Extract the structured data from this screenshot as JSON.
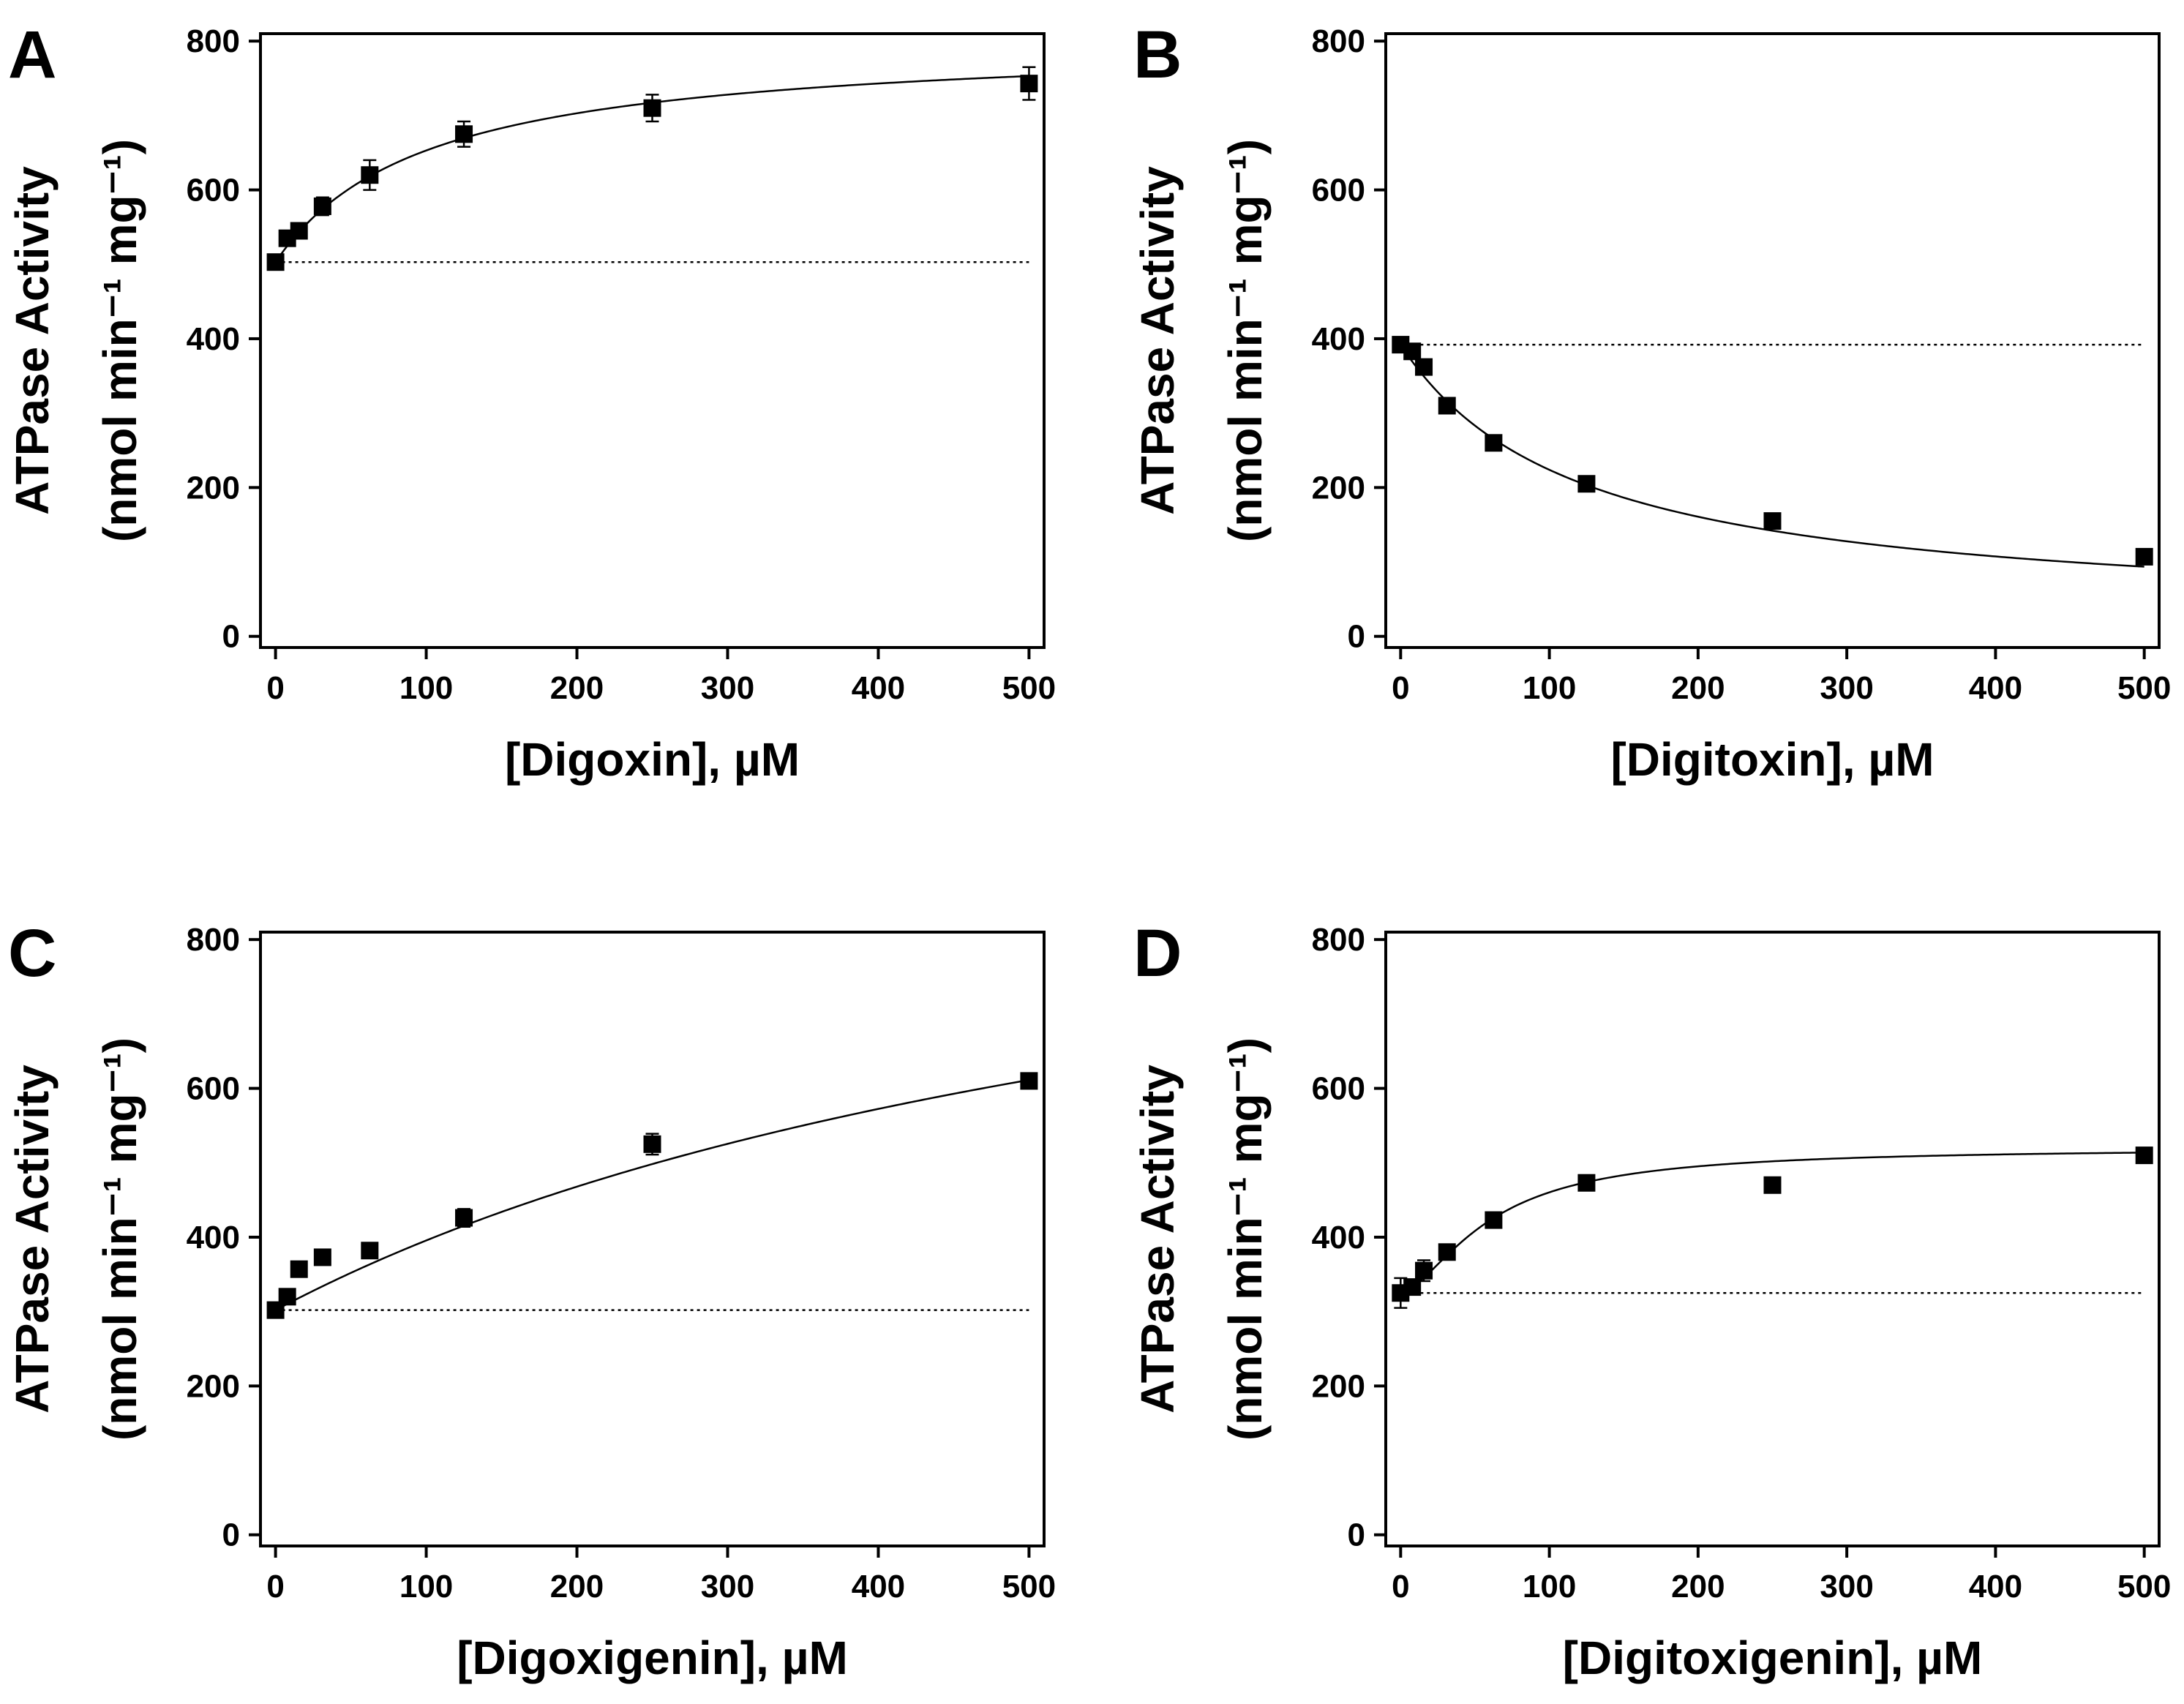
{
  "chart_data": [
    {
      "panel": "A",
      "type": "scatter",
      "title": "",
      "xlabel": "[Digoxin], µM",
      "ylabel_line1": "ATPase Activity",
      "ylabel_line2": "(nmol min⁻¹ mg⁻¹)",
      "xlim": [
        -10,
        510
      ],
      "ylim": [
        -15,
        810
      ],
      "xticks": [
        0,
        100,
        200,
        300,
        400,
        500
      ],
      "yticks": [
        0,
        200,
        400,
        600,
        800
      ],
      "baseline": 503,
      "fit": {
        "model": "hyperbolic",
        "v0": 503,
        "delta": 300,
        "k": 100
      },
      "points": [
        {
          "x": 0,
          "y": 503,
          "err": 6
        },
        {
          "x": 7.8,
          "y": 535,
          "err": 8
        },
        {
          "x": 15.6,
          "y": 545,
          "err": 8
        },
        {
          "x": 31.2,
          "y": 578,
          "err": 12
        },
        {
          "x": 62.5,
          "y": 620,
          "err": 20
        },
        {
          "x": 125,
          "y": 675,
          "err": 17
        },
        {
          "x": 250,
          "y": 710,
          "err": 18
        },
        {
          "x": 500,
          "y": 743,
          "err": 22
        }
      ]
    },
    {
      "panel": "B",
      "type": "scatter",
      "title": "",
      "xlabel": "[Digitoxin], µM",
      "ylabel_line1": "ATPase Activity",
      "ylabel_line2": "(nmol min⁻¹ mg⁻¹)",
      "xlim": [
        -10,
        510
      ],
      "ylim": [
        -15,
        810
      ],
      "xticks": [
        0,
        100,
        200,
        300,
        400,
        500
      ],
      "yticks": [
        0,
        200,
        400,
        600,
        800
      ],
      "baseline": 392,
      "fit": {
        "model": "hyperbolic",
        "v0": 392,
        "delta": -370,
        "k": 120
      },
      "points": [
        {
          "x": 0,
          "y": 392,
          "err": 4
        },
        {
          "x": 7.8,
          "y": 383,
          "err": 4
        },
        {
          "x": 15.6,
          "y": 362,
          "err": 6
        },
        {
          "x": 31.2,
          "y": 310,
          "err": 6
        },
        {
          "x": 62.5,
          "y": 260,
          "err": 4
        },
        {
          "x": 125,
          "y": 205,
          "err": 4
        },
        {
          "x": 250,
          "y": 155,
          "err": 4
        },
        {
          "x": 500,
          "y": 107,
          "err": 4
        }
      ]
    },
    {
      "panel": "C",
      "type": "scatter",
      "title": "",
      "xlabel": "[Digoxigenin], µM",
      "ylabel_line1": "ATPase Activity",
      "ylabel_line2": "(nmol min⁻¹ mg⁻¹)",
      "xlim": [
        -10,
        510
      ],
      "ylim": [
        -15,
        810
      ],
      "xticks": [
        0,
        100,
        200,
        300,
        400,
        500
      ],
      "yticks": [
        0,
        200,
        400,
        600,
        800
      ],
      "baseline": 302,
      "fit": {
        "model": "hyperbolic",
        "v0": 302,
        "delta": 730,
        "k": 680
      },
      "points": [
        {
          "x": 0,
          "y": 302,
          "err": 8
        },
        {
          "x": 7.8,
          "y": 320,
          "err": 8
        },
        {
          "x": 15.6,
          "y": 357,
          "err": 8
        },
        {
          "x": 31.2,
          "y": 373,
          "err": 8
        },
        {
          "x": 62.5,
          "y": 382,
          "err": 8
        },
        {
          "x": 125,
          "y": 426,
          "err": 12
        },
        {
          "x": 250,
          "y": 525,
          "err": 14
        },
        {
          "x": 500,
          "y": 610,
          "err": 8
        }
      ]
    },
    {
      "panel": "D",
      "type": "scatter",
      "title": "",
      "xlabel": "[Digitoxigenin], µM",
      "ylabel_line1": "ATPase Activity",
      "ylabel_line2": "(nmol min⁻¹ mg⁻¹)",
      "xlim": [
        -10,
        510
      ],
      "ylim": [
        -15,
        810
      ],
      "xticks": [
        0,
        100,
        200,
        300,
        400,
        500
      ],
      "yticks": [
        0,
        200,
        400,
        600,
        800
      ],
      "baseline": 325,
      "fit": {
        "model": "hill",
        "v0": 325,
        "delta": 195,
        "k": 60,
        "n": 1.6
      },
      "points": [
        {
          "x": 0,
          "y": 325,
          "err": 20
        },
        {
          "x": 7.8,
          "y": 333,
          "err": 8
        },
        {
          "x": 15.6,
          "y": 355,
          "err": 14
        },
        {
          "x": 31.2,
          "y": 380,
          "err": 8
        },
        {
          "x": 62.5,
          "y": 423,
          "err": 8
        },
        {
          "x": 125,
          "y": 473,
          "err": 8
        },
        {
          "x": 250,
          "y": 470,
          "err": 8
        },
        {
          "x": 500,
          "y": 510,
          "err": 8
        }
      ]
    }
  ]
}
